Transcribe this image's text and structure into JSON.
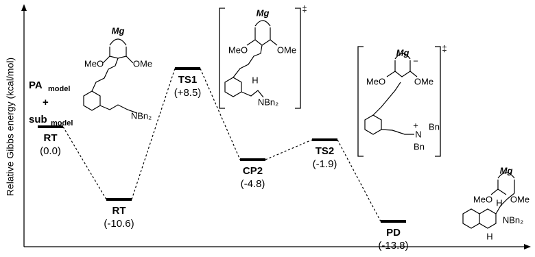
{
  "chart_data": {
    "type": "energy-profile",
    "y_label": "Relative Gibbs energy (kcal/mol)",
    "categories": [
      "RT",
      "RT",
      "TS1",
      "CP2",
      "TS2",
      "PD"
    ],
    "values": [
      0.0,
      -10.6,
      8.5,
      -4.8,
      -1.9,
      -13.8
    ],
    "value_labels": [
      "(0.0)",
      "(-10.6)",
      "(+8.5)",
      "(-4.8)",
      "(-1.9)",
      "(-13.8)"
    ],
    "ylim": [
      -16.5,
      16.5
    ],
    "color": "#000000",
    "reactant_label": {
      "line1": {
        "main": "PA",
        "sub": "model"
      },
      "plus": "+",
      "line2": {
        "main": "sub",
        "sub": "model"
      }
    },
    "structures": [
      {
        "texts": [
          "Mg",
          "MeO",
          "OMe",
          "NBn₂"
        ]
      },
      {
        "texts": [
          "Mg",
          "MeO",
          "OMe",
          "H",
          "NBn₂",
          "‡"
        ]
      },
      {
        "texts": [
          "Mg",
          "−",
          "MeO",
          "OMe",
          "+",
          "N",
          "Bn",
          "Bn",
          "‡"
        ]
      },
      {
        "texts": [
          "Mg",
          "MeO",
          "OMe",
          "H",
          "NBn₂",
          "H"
        ]
      }
    ]
  }
}
